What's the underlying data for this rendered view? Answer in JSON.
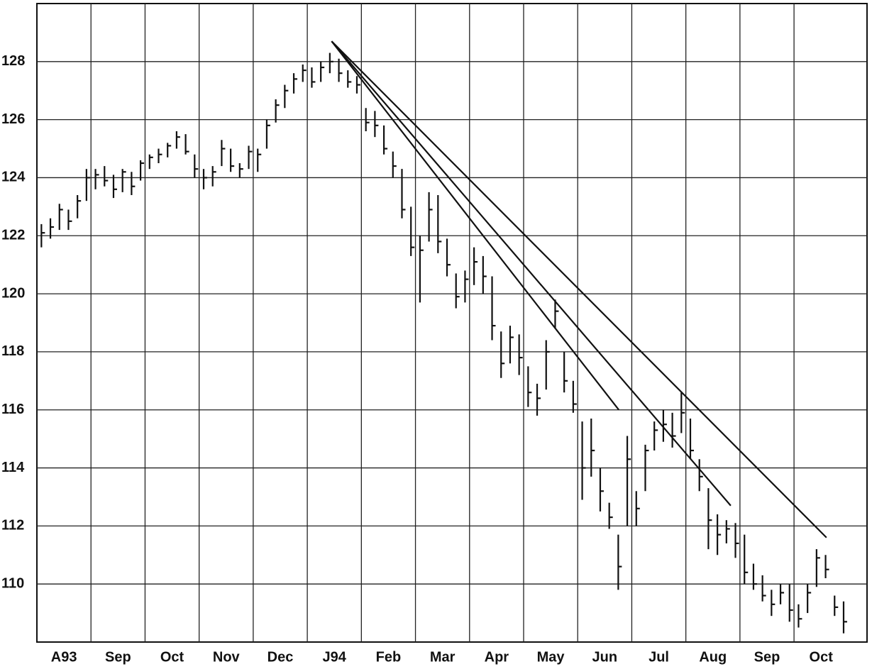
{
  "chart_data": {
    "type": "ohlc",
    "categories": [
      "A93",
      "Sep",
      "Oct",
      "Nov",
      "Dec",
      "J94",
      "Feb",
      "Mar",
      "Apr",
      "May",
      "Jun",
      "Jul",
      "Aug",
      "Sep",
      "Oct"
    ],
    "bars": [
      [
        [
          122.4,
          121.6,
          122.1
        ],
        [
          122.6,
          121.9,
          122.3
        ],
        [
          123.1,
          122.2,
          122.9
        ],
        [
          122.9,
          122.2,
          122.5
        ],
        [
          123.4,
          122.6,
          123.2
        ],
        [
          124.3,
          123.2,
          124.0
        ]
      ],
      [
        [
          124.3,
          123.6,
          124.1
        ],
        [
          124.4,
          123.7,
          123.9
        ],
        [
          124.1,
          123.3,
          123.6
        ],
        [
          124.3,
          123.5,
          124.2
        ],
        [
          124.2,
          123.4,
          123.7
        ],
        [
          124.6,
          123.9,
          124.5
        ]
      ],
      [
        [
          124.8,
          124.3,
          124.7
        ],
        [
          125.0,
          124.5,
          124.8
        ],
        [
          125.2,
          124.7,
          125.1
        ],
        [
          125.6,
          125.0,
          125.4
        ],
        [
          125.5,
          124.8,
          124.9
        ],
        [
          124.8,
          124.0,
          124.3
        ]
      ],
      [
        [
          124.3,
          123.6,
          124.0
        ],
        [
          124.4,
          123.7,
          124.2
        ],
        [
          125.3,
          124.4,
          125.0
        ],
        [
          125.0,
          124.2,
          124.4
        ],
        [
          124.5,
          124.0,
          124.3
        ],
        [
          125.1,
          124.3,
          124.9
        ]
      ],
      [
        [
          125.0,
          124.2,
          124.8
        ],
        [
          126.0,
          125.0,
          125.8
        ],
        [
          126.7,
          125.9,
          126.5
        ],
        [
          127.2,
          126.4,
          127.0
        ],
        [
          127.6,
          126.9,
          127.4
        ],
        [
          127.9,
          127.3,
          127.7
        ]
      ],
      [
        [
          127.8,
          127.1,
          127.3
        ],
        [
          128.0,
          127.3,
          127.8
        ],
        [
          128.3,
          127.6,
          128.0
        ],
        [
          128.1,
          127.3,
          127.6
        ],
        [
          127.7,
          127.1,
          127.3
        ],
        [
          127.5,
          126.9,
          127.2
        ]
      ],
      [
        [
          126.4,
          125.6,
          125.9
        ],
        [
          126.3,
          125.4,
          125.8
        ],
        [
          125.8,
          124.8,
          125.0
        ],
        [
          124.9,
          124.0,
          124.4
        ],
        [
          124.3,
          122.6,
          122.9
        ],
        [
          123.0,
          121.3,
          121.6
        ]
      ],
      [
        [
          122.0,
          119.7,
          121.5
        ],
        [
          123.5,
          121.8,
          122.9
        ],
        [
          123.4,
          121.4,
          121.8
        ],
        [
          121.9,
          120.6,
          121.0
        ],
        [
          120.7,
          119.5,
          119.9
        ],
        [
          120.8,
          119.7,
          120.5
        ]
      ],
      [
        [
          121.6,
          120.3,
          121.1
        ],
        [
          121.3,
          120.0,
          120.6
        ],
        [
          120.6,
          118.4,
          118.9
        ],
        [
          118.7,
          117.1,
          117.6
        ],
        [
          118.9,
          117.6,
          118.5
        ],
        [
          118.6,
          117.2,
          117.8
        ]
      ],
      [
        [
          117.5,
          116.1,
          116.6
        ],
        [
          116.9,
          115.8,
          116.4
        ],
        [
          118.4,
          116.7,
          118.0
        ],
        [
          119.8,
          118.8,
          119.4
        ],
        [
          118.0,
          116.6,
          117.0
        ],
        [
          117.0,
          115.9,
          116.2
        ]
      ],
      [
        [
          115.6,
          112.9,
          114.0
        ],
        [
          115.7,
          113.7,
          114.6
        ],
        [
          114.0,
          112.5,
          113.2
        ],
        [
          112.8,
          111.9,
          112.3
        ],
        [
          111.7,
          109.8,
          110.6
        ],
        [
          115.1,
          112.0,
          114.3
        ]
      ],
      [
        [
          113.2,
          112.0,
          112.6
        ],
        [
          114.8,
          113.2,
          114.6
        ],
        [
          115.6,
          114.6,
          115.3
        ],
        [
          116.0,
          114.9,
          115.5
        ],
        [
          115.9,
          114.7,
          115.1
        ],
        [
          116.6,
          115.2,
          115.9
        ]
      ],
      [
        [
          115.7,
          114.3,
          114.6
        ],
        [
          114.3,
          113.2,
          113.7
        ],
        [
          113.3,
          111.2,
          112.2
        ],
        [
          112.4,
          111.0,
          111.7
        ],
        [
          112.2,
          111.4,
          111.9
        ],
        [
          112.1,
          110.9,
          111.4
        ]
      ],
      [
        [
          111.7,
          110.0,
          110.4
        ],
        [
          110.7,
          109.8,
          110.0
        ],
        [
          110.3,
          109.4,
          109.6
        ],
        [
          109.8,
          108.9,
          109.3
        ],
        [
          110.0,
          109.3,
          109.7
        ],
        [
          110.0,
          108.7,
          109.1
        ]
      ],
      [
        [
          109.3,
          108.5,
          108.8
        ],
        [
          110.0,
          109.0,
          109.7
        ],
        [
          111.2,
          109.9,
          110.9
        ],
        [
          111.0,
          110.2,
          110.5
        ],
        [
          109.6,
          108.9,
          109.2
        ],
        [
          109.4,
          108.3,
          108.7
        ]
      ]
    ],
    "trendlines": [
      {
        "x": [
          5.45,
          10.76
        ],
        "y": [
          128.7,
          116.0
        ]
      },
      {
        "x": [
          5.45,
          12.83
        ],
        "y": [
          128.7,
          112.7
        ]
      },
      {
        "x": [
          5.45,
          14.6
        ],
        "y": [
          128.7,
          111.6
        ]
      }
    ],
    "xlim": [
      0,
      15.35
    ],
    "ylim": [
      108,
      130
    ],
    "yticks": [
      110,
      112,
      114,
      116,
      118,
      120,
      122,
      124,
      126,
      128
    ],
    "grid": true
  }
}
